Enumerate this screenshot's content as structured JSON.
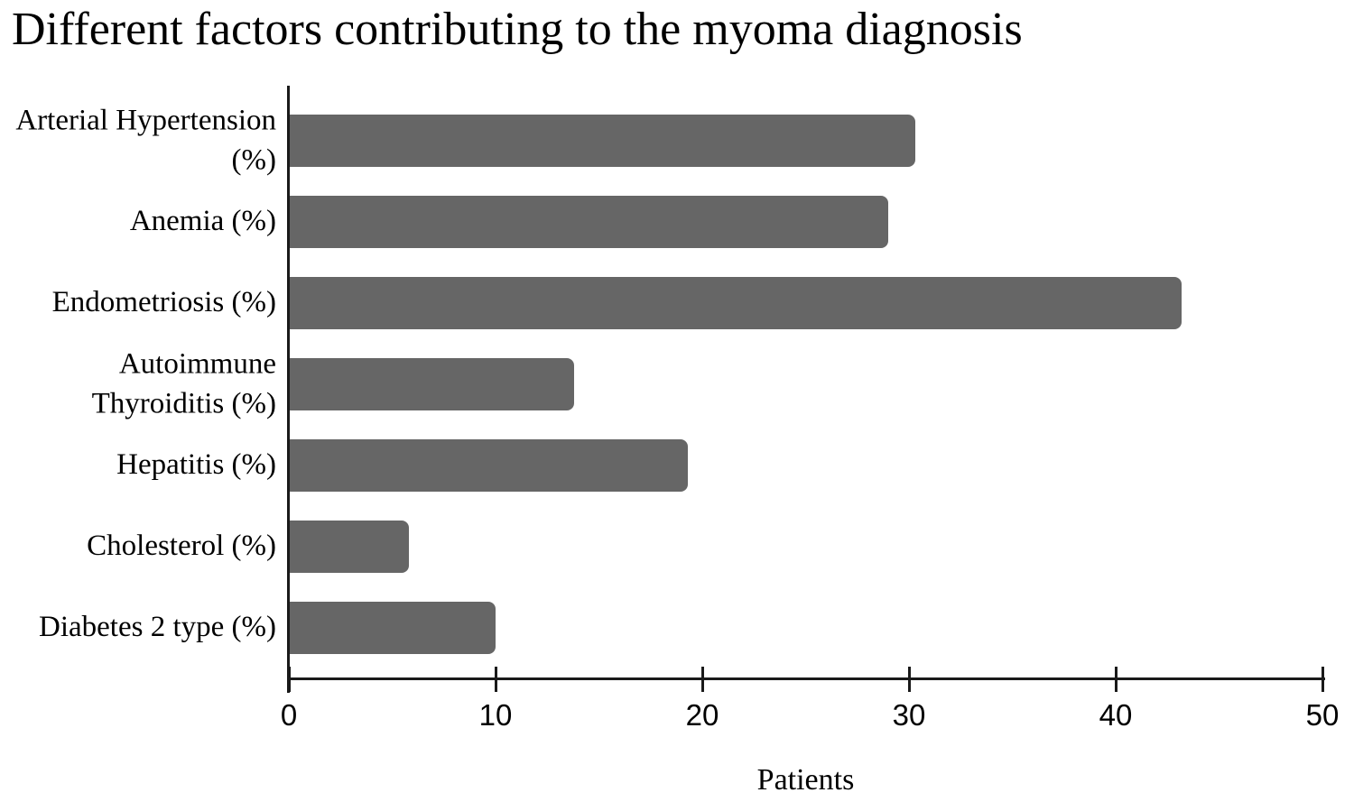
{
  "title": "Different factors contributing to the myoma diagnosis",
  "chart_data": {
    "type": "bar",
    "orientation": "horizontal",
    "title": "Different factors contributing to the myoma diagnosis",
    "categories": [
      "Arterial Hypertension (%)",
      "Anemia (%)",
      "Endometriosis (%)",
      "Autoimmune Thyroiditis (%)",
      "Hepatitis (%)",
      "Cholesterol (%)",
      "Diabetes 2 type (%)"
    ],
    "category_display": [
      "Arterial Hypertension\n(%)",
      "Anemia (%)",
      "Endometriosis (%)",
      "Autoimmune\nThyroiditis (%)",
      "Hepatitis (%)",
      "Cholesterol (%)",
      "Diabetes 2 type (%)"
    ],
    "values": [
      30.3,
      29,
      43.2,
      13.8,
      19.3,
      5.8,
      10
    ],
    "xlabel": "Patients",
    "ylabel": "",
    "xlim": [
      0,
      50
    ],
    "xticks": [
      0,
      10,
      20,
      30,
      40,
      50
    ],
    "bar_color": "#666666",
    "axis_color": "#1a1a1a",
    "grid": false,
    "legend": null
  }
}
